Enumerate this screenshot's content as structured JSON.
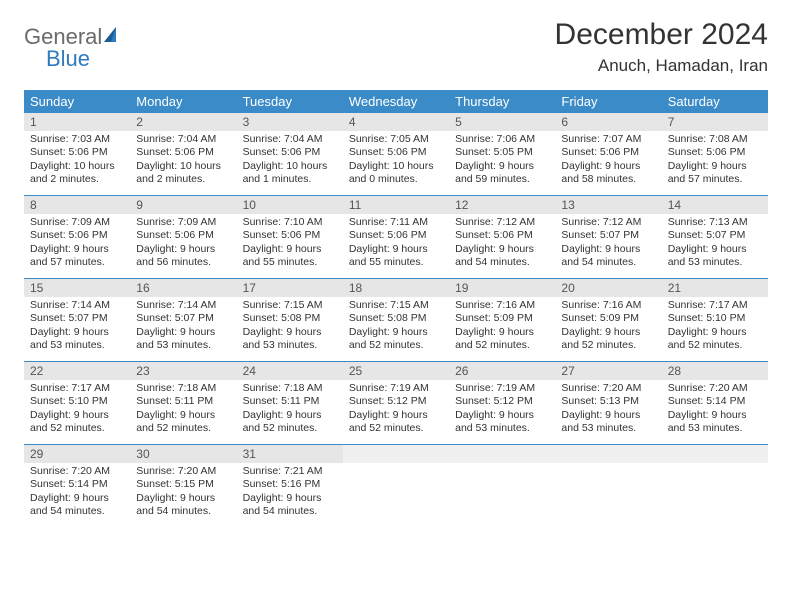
{
  "logo": {
    "general": "General",
    "blue": "Blue"
  },
  "title": "December 2024",
  "location": "Anuch, Hamadan, Iran",
  "colors": {
    "header_bg": "#3b8bc8",
    "header_fg": "#ffffff",
    "daynum_bg": "#e6e6e6",
    "border": "#3b8bc8",
    "text": "#333333",
    "logo_gray": "#6b6b6b",
    "logo_blue": "#2e7cc0"
  },
  "dow": [
    "Sunday",
    "Monday",
    "Tuesday",
    "Wednesday",
    "Thursday",
    "Friday",
    "Saturday"
  ],
  "weeks": [
    [
      {
        "n": "1",
        "sr": "Sunrise: 7:03 AM",
        "ss": "Sunset: 5:06 PM",
        "dl": "Daylight: 10 hours and 2 minutes."
      },
      {
        "n": "2",
        "sr": "Sunrise: 7:04 AM",
        "ss": "Sunset: 5:06 PM",
        "dl": "Daylight: 10 hours and 2 minutes."
      },
      {
        "n": "3",
        "sr": "Sunrise: 7:04 AM",
        "ss": "Sunset: 5:06 PM",
        "dl": "Daylight: 10 hours and 1 minutes."
      },
      {
        "n": "4",
        "sr": "Sunrise: 7:05 AM",
        "ss": "Sunset: 5:06 PM",
        "dl": "Daylight: 10 hours and 0 minutes."
      },
      {
        "n": "5",
        "sr": "Sunrise: 7:06 AM",
        "ss": "Sunset: 5:05 PM",
        "dl": "Daylight: 9 hours and 59 minutes."
      },
      {
        "n": "6",
        "sr": "Sunrise: 7:07 AM",
        "ss": "Sunset: 5:06 PM",
        "dl": "Daylight: 9 hours and 58 minutes."
      },
      {
        "n": "7",
        "sr": "Sunrise: 7:08 AM",
        "ss": "Sunset: 5:06 PM",
        "dl": "Daylight: 9 hours and 57 minutes."
      }
    ],
    [
      {
        "n": "8",
        "sr": "Sunrise: 7:09 AM",
        "ss": "Sunset: 5:06 PM",
        "dl": "Daylight: 9 hours and 57 minutes."
      },
      {
        "n": "9",
        "sr": "Sunrise: 7:09 AM",
        "ss": "Sunset: 5:06 PM",
        "dl": "Daylight: 9 hours and 56 minutes."
      },
      {
        "n": "10",
        "sr": "Sunrise: 7:10 AM",
        "ss": "Sunset: 5:06 PM",
        "dl": "Daylight: 9 hours and 55 minutes."
      },
      {
        "n": "11",
        "sr": "Sunrise: 7:11 AM",
        "ss": "Sunset: 5:06 PM",
        "dl": "Daylight: 9 hours and 55 minutes."
      },
      {
        "n": "12",
        "sr": "Sunrise: 7:12 AM",
        "ss": "Sunset: 5:06 PM",
        "dl": "Daylight: 9 hours and 54 minutes."
      },
      {
        "n": "13",
        "sr": "Sunrise: 7:12 AM",
        "ss": "Sunset: 5:07 PM",
        "dl": "Daylight: 9 hours and 54 minutes."
      },
      {
        "n": "14",
        "sr": "Sunrise: 7:13 AM",
        "ss": "Sunset: 5:07 PM",
        "dl": "Daylight: 9 hours and 53 minutes."
      }
    ],
    [
      {
        "n": "15",
        "sr": "Sunrise: 7:14 AM",
        "ss": "Sunset: 5:07 PM",
        "dl": "Daylight: 9 hours and 53 minutes."
      },
      {
        "n": "16",
        "sr": "Sunrise: 7:14 AM",
        "ss": "Sunset: 5:07 PM",
        "dl": "Daylight: 9 hours and 53 minutes."
      },
      {
        "n": "17",
        "sr": "Sunrise: 7:15 AM",
        "ss": "Sunset: 5:08 PM",
        "dl": "Daylight: 9 hours and 53 minutes."
      },
      {
        "n": "18",
        "sr": "Sunrise: 7:15 AM",
        "ss": "Sunset: 5:08 PM",
        "dl": "Daylight: 9 hours and 52 minutes."
      },
      {
        "n": "19",
        "sr": "Sunrise: 7:16 AM",
        "ss": "Sunset: 5:09 PM",
        "dl": "Daylight: 9 hours and 52 minutes."
      },
      {
        "n": "20",
        "sr": "Sunrise: 7:16 AM",
        "ss": "Sunset: 5:09 PM",
        "dl": "Daylight: 9 hours and 52 minutes."
      },
      {
        "n": "21",
        "sr": "Sunrise: 7:17 AM",
        "ss": "Sunset: 5:10 PM",
        "dl": "Daylight: 9 hours and 52 minutes."
      }
    ],
    [
      {
        "n": "22",
        "sr": "Sunrise: 7:17 AM",
        "ss": "Sunset: 5:10 PM",
        "dl": "Daylight: 9 hours and 52 minutes."
      },
      {
        "n": "23",
        "sr": "Sunrise: 7:18 AM",
        "ss": "Sunset: 5:11 PM",
        "dl": "Daylight: 9 hours and 52 minutes."
      },
      {
        "n": "24",
        "sr": "Sunrise: 7:18 AM",
        "ss": "Sunset: 5:11 PM",
        "dl": "Daylight: 9 hours and 52 minutes."
      },
      {
        "n": "25",
        "sr": "Sunrise: 7:19 AM",
        "ss": "Sunset: 5:12 PM",
        "dl": "Daylight: 9 hours and 52 minutes."
      },
      {
        "n": "26",
        "sr": "Sunrise: 7:19 AM",
        "ss": "Sunset: 5:12 PM",
        "dl": "Daylight: 9 hours and 53 minutes."
      },
      {
        "n": "27",
        "sr": "Sunrise: 7:20 AM",
        "ss": "Sunset: 5:13 PM",
        "dl": "Daylight: 9 hours and 53 minutes."
      },
      {
        "n": "28",
        "sr": "Sunrise: 7:20 AM",
        "ss": "Sunset: 5:14 PM",
        "dl": "Daylight: 9 hours and 53 minutes."
      }
    ],
    [
      {
        "n": "29",
        "sr": "Sunrise: 7:20 AM",
        "ss": "Sunset: 5:14 PM",
        "dl": "Daylight: 9 hours and 54 minutes."
      },
      {
        "n": "30",
        "sr": "Sunrise: 7:20 AM",
        "ss": "Sunset: 5:15 PM",
        "dl": "Daylight: 9 hours and 54 minutes."
      },
      {
        "n": "31",
        "sr": "Sunrise: 7:21 AM",
        "ss": "Sunset: 5:16 PM",
        "dl": "Daylight: 9 hours and 54 minutes."
      },
      null,
      null,
      null,
      null
    ]
  ]
}
